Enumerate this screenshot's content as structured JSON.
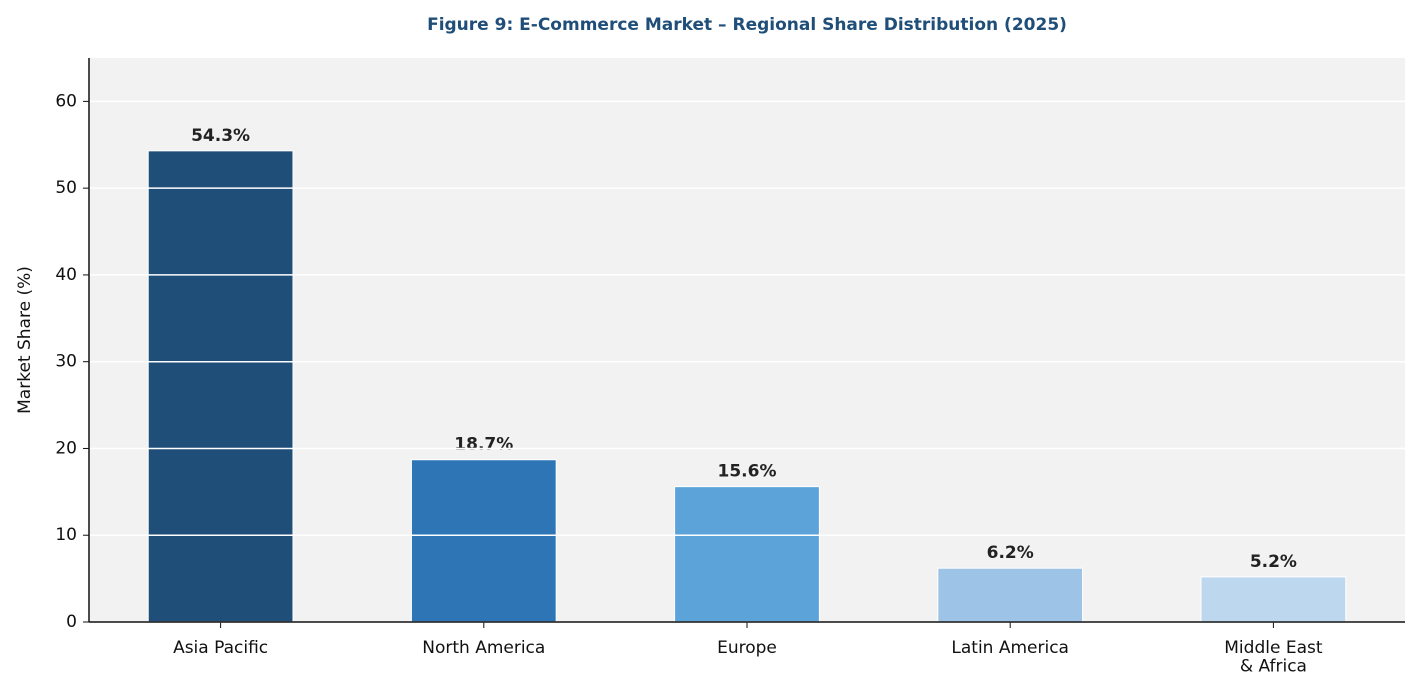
{
  "chart_data": {
    "type": "bar",
    "title": "Figure 9: E-Commerce Market – Regional Share Distribution (2025)",
    "y_label": "Market Share (%)",
    "categories": [
      "Asia Pacific",
      "North America",
      "Europe",
      "Latin America",
      "Middle East\n& Africa"
    ],
    "values": [
      54.3,
      18.7,
      15.6,
      6.2,
      5.2
    ],
    "value_labels": [
      "54.3%",
      "18.7%",
      "15.6%",
      "6.2%",
      "5.2%"
    ],
    "colors": [
      "#1f4e79",
      "#2e75b6",
      "#5ba3d9",
      "#9dc3e6",
      "#bdd7ee"
    ],
    "ylim": [
      0,
      65
    ],
    "yticks": [
      0,
      10,
      20,
      30,
      40,
      50,
      60
    ],
    "grid": true
  }
}
